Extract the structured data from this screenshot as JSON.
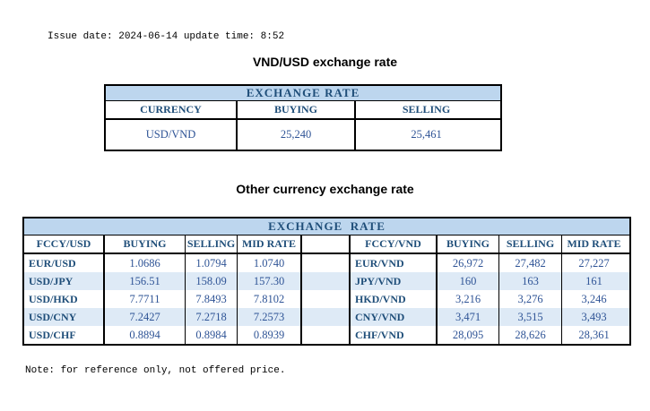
{
  "page": {
    "issue_line": "Issue date: 2024-06-14 update time: 8:52",
    "note_line": "Note: for reference only, not offered price."
  },
  "colors": {
    "banner_bg": "#BDD6EE",
    "stripe_bg": "#DEEAF6",
    "heading_text": "#1F4E79",
    "value_text": "#2F5496",
    "border": "#000000"
  },
  "usd_table": {
    "title": "VND/USD exchange rate",
    "banner": "EXCHANGE RATE",
    "columns": {
      "currency": "CURRENCY",
      "buying": "BUYING",
      "selling": "SELLING"
    },
    "row": {
      "currency": "USD/VND",
      "buying": "25,240",
      "selling": "25,461"
    }
  },
  "other_table": {
    "title": "Other currency exchange rate",
    "banner": "EXCHANGE  RATE",
    "left": {
      "columns": {
        "pair": "FCCY/USD",
        "buying": "BUYING",
        "selling": "SELLING",
        "mid": "MID RATE"
      },
      "rows": [
        {
          "pair": "EUR/USD",
          "buying": "1.0686",
          "selling": "1.0794",
          "mid": "1.0740"
        },
        {
          "pair": "USD/JPY",
          "buying": "156.51",
          "selling": "158.09",
          "mid": "157.30"
        },
        {
          "pair": "USD/HKD",
          "buying": "7.7711",
          "selling": "7.8493",
          "mid": "7.8102"
        },
        {
          "pair": "USD/CNY",
          "buying": "7.2427",
          "selling": "7.2718",
          "mid": "7.2573"
        },
        {
          "pair": "USD/CHF",
          "buying": "0.8894",
          "selling": "0.8984",
          "mid": "0.8939"
        }
      ]
    },
    "right": {
      "columns": {
        "pair": "FCCY/VND",
        "buying": "BUYING",
        "selling": "SELLING",
        "mid": "MID RATE"
      },
      "rows": [
        {
          "pair": "EUR/VND",
          "buying": "26,972",
          "selling": "27,482",
          "mid": "27,227"
        },
        {
          "pair": "JPY/VND",
          "buying": "160",
          "selling": "163",
          "mid": "161"
        },
        {
          "pair": "HKD/VND",
          "buying": "3,216",
          "selling": "3,276",
          "mid": "3,246"
        },
        {
          "pair": "CNY/VND",
          "buying": "3,471",
          "selling": "3,515",
          "mid": "3,493"
        },
        {
          "pair": "CHF/VND",
          "buying": "28,095",
          "selling": "28,626",
          "mid": "28,361"
        }
      ]
    }
  }
}
